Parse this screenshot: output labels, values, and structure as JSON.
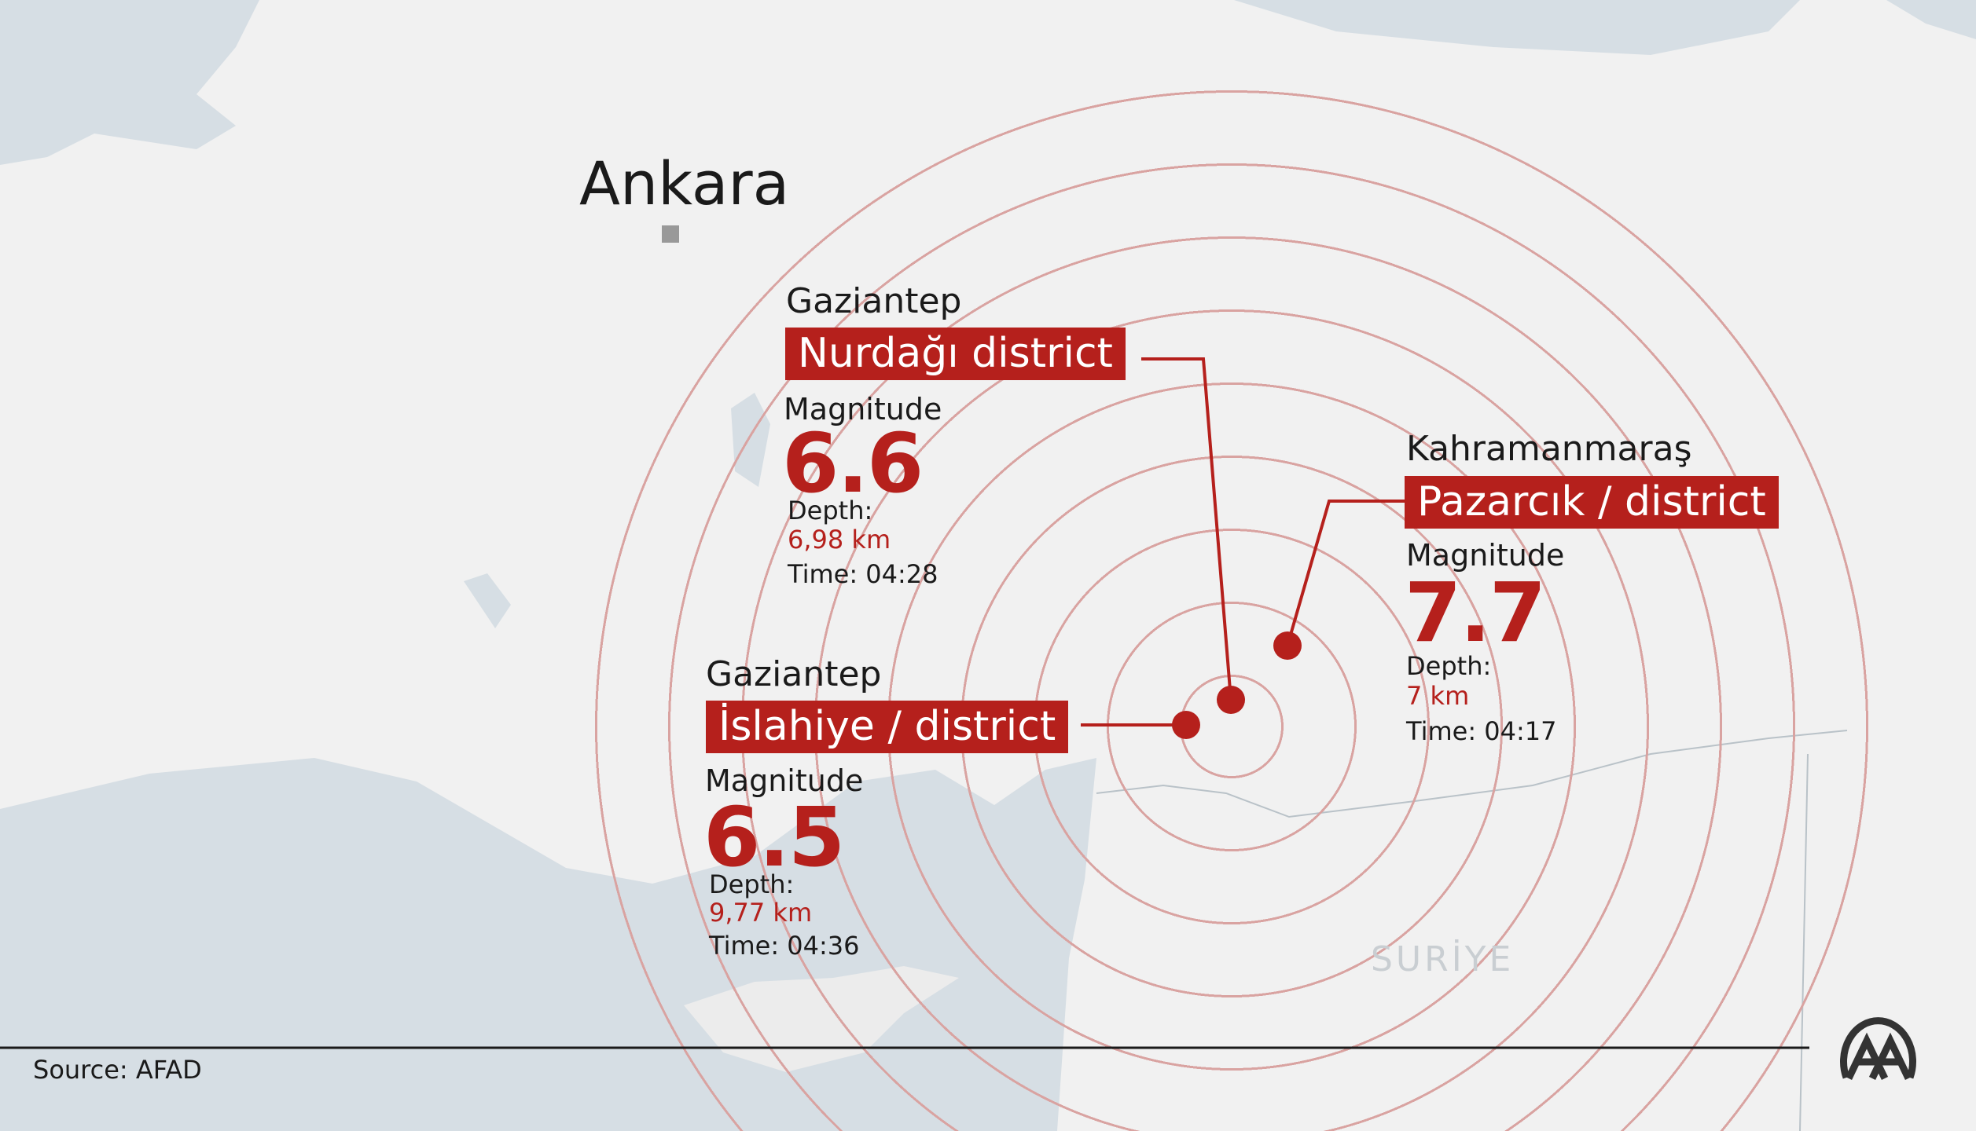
{
  "capital": {
    "name": "Ankara"
  },
  "country_label": "SURİYE",
  "colors": {
    "accent": "#b5201c",
    "land": "#f1f1f1",
    "sea": "#d6dee4",
    "ring": "#d9a3a1"
  },
  "epicenter_rings": 9,
  "quakes": [
    {
      "province": "Gaziantep",
      "district": "Nurdağı district",
      "magnitude_label": "Magnitude",
      "magnitude": "6.6",
      "depth_label": "Depth:",
      "depth": "6,98 km",
      "time": "Time: 04:28"
    },
    {
      "province": "Kahramanmaraş",
      "district": "Pazarcık / district",
      "magnitude_label": "Magnitude",
      "magnitude": "7.7",
      "depth_label": "Depth:",
      "depth": "7 km",
      "time": "Time: 04:17"
    },
    {
      "province": "Gaziantep",
      "district": "İslahiye / district",
      "magnitude_label": "Magnitude",
      "magnitude": "6.5",
      "depth_label": "Depth:",
      "depth": "9,77 km",
      "time": "Time: 04:36"
    }
  ],
  "footer": {
    "source": "Source: AFAD",
    "logo": "AA"
  }
}
